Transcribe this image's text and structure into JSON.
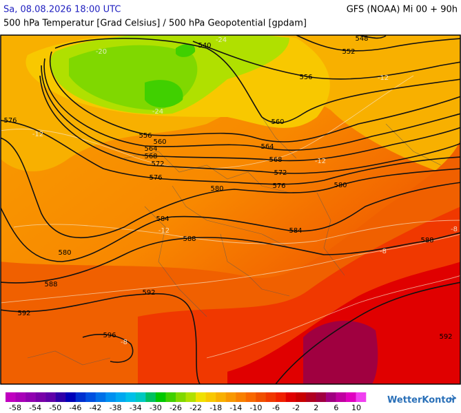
{
  "header": {
    "datetime": "Sa, 08.08.2026 18:00 UTC",
    "model": "GFS (NOAA) Mi 00 + 90h",
    "subtitle": "500 hPa Temperatur [Grad Celsius] / 500 hPa Geopotential [gpdam]"
  },
  "map": {
    "geopotential_labels": [
      548,
      552,
      556,
      540,
      560,
      556,
      560,
      564,
      564,
      568,
      568,
      572,
      572,
      576,
      576,
      580,
      580,
      584,
      584,
      588,
      588,
      576,
      580,
      588,
      592,
      592,
      592,
      596
    ],
    "temperature_labels": [
      -20,
      -24,
      -24,
      -12,
      -12,
      -12,
      -12,
      -8,
      -8,
      -8
    ]
  },
  "colorbar": {
    "colors": [
      "#c000c0",
      "#a800b8",
      "#9000b0",
      "#7800a8",
      "#6000a8",
      "#3000a8",
      "#0000b8",
      "#0030d0",
      "#0050e0",
      "#0070e8",
      "#0090f0",
      "#00a8f0",
      "#00c0e8",
      "#00c8c0",
      "#00c060",
      "#00c800",
      "#40d000",
      "#80d800",
      "#b0e000",
      "#f0e000",
      "#f8c800",
      "#f8b000",
      "#f89800",
      "#f88000",
      "#f86800",
      "#f05000",
      "#f03800",
      "#f02000",
      "#e00000",
      "#c80000",
      "#b00020",
      "#a00040",
      "#a00080",
      "#c000a0",
      "#e000c0",
      "#f040f0"
    ],
    "ticks": [
      -58,
      -54,
      -50,
      -46,
      -42,
      -38,
      -34,
      -30,
      -26,
      -22,
      -18,
      -14,
      -10,
      -6,
      -2,
      2,
      6,
      10
    ]
  },
  "logo": "WetterKontor"
}
